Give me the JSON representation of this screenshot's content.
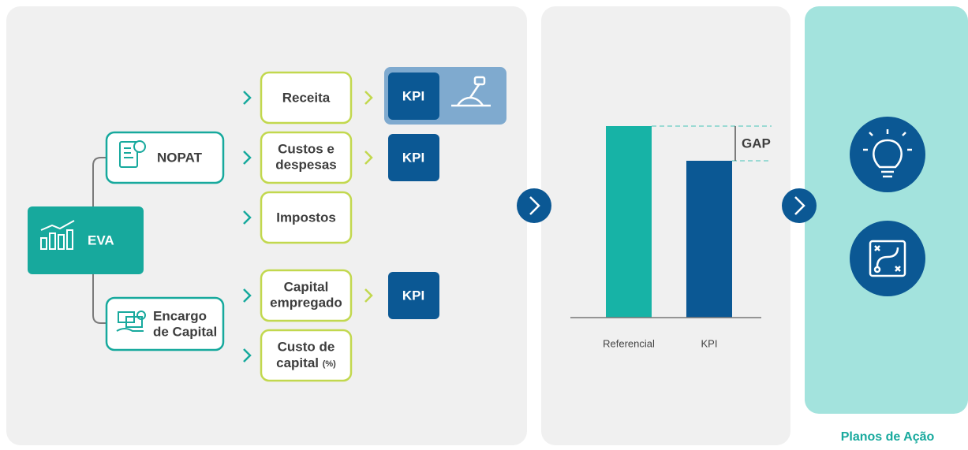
{
  "root": {
    "label": "EVA"
  },
  "branches": [
    {
      "label": [
        "NOPAT"
      ]
    },
    {
      "label": [
        "Encargo",
        "de Capital"
      ]
    }
  ],
  "drivers": [
    {
      "label": [
        "Receita"
      ]
    },
    {
      "label": [
        "Custos e",
        "despesas"
      ]
    },
    {
      "label": [
        "Impostos"
      ]
    },
    {
      "label": [
        "Capital",
        "empregado"
      ]
    },
    {
      "label": [
        "Custo de",
        "capital"
      ],
      "suffix": "(%)"
    }
  ],
  "kpis": [
    "KPI",
    "KPI",
    "KPI"
  ],
  "gap": {
    "label": "GAP",
    "categories": [
      "Referencial",
      "KPI"
    ]
  },
  "action_plans": {
    "title": "Planos de Ação"
  }
}
